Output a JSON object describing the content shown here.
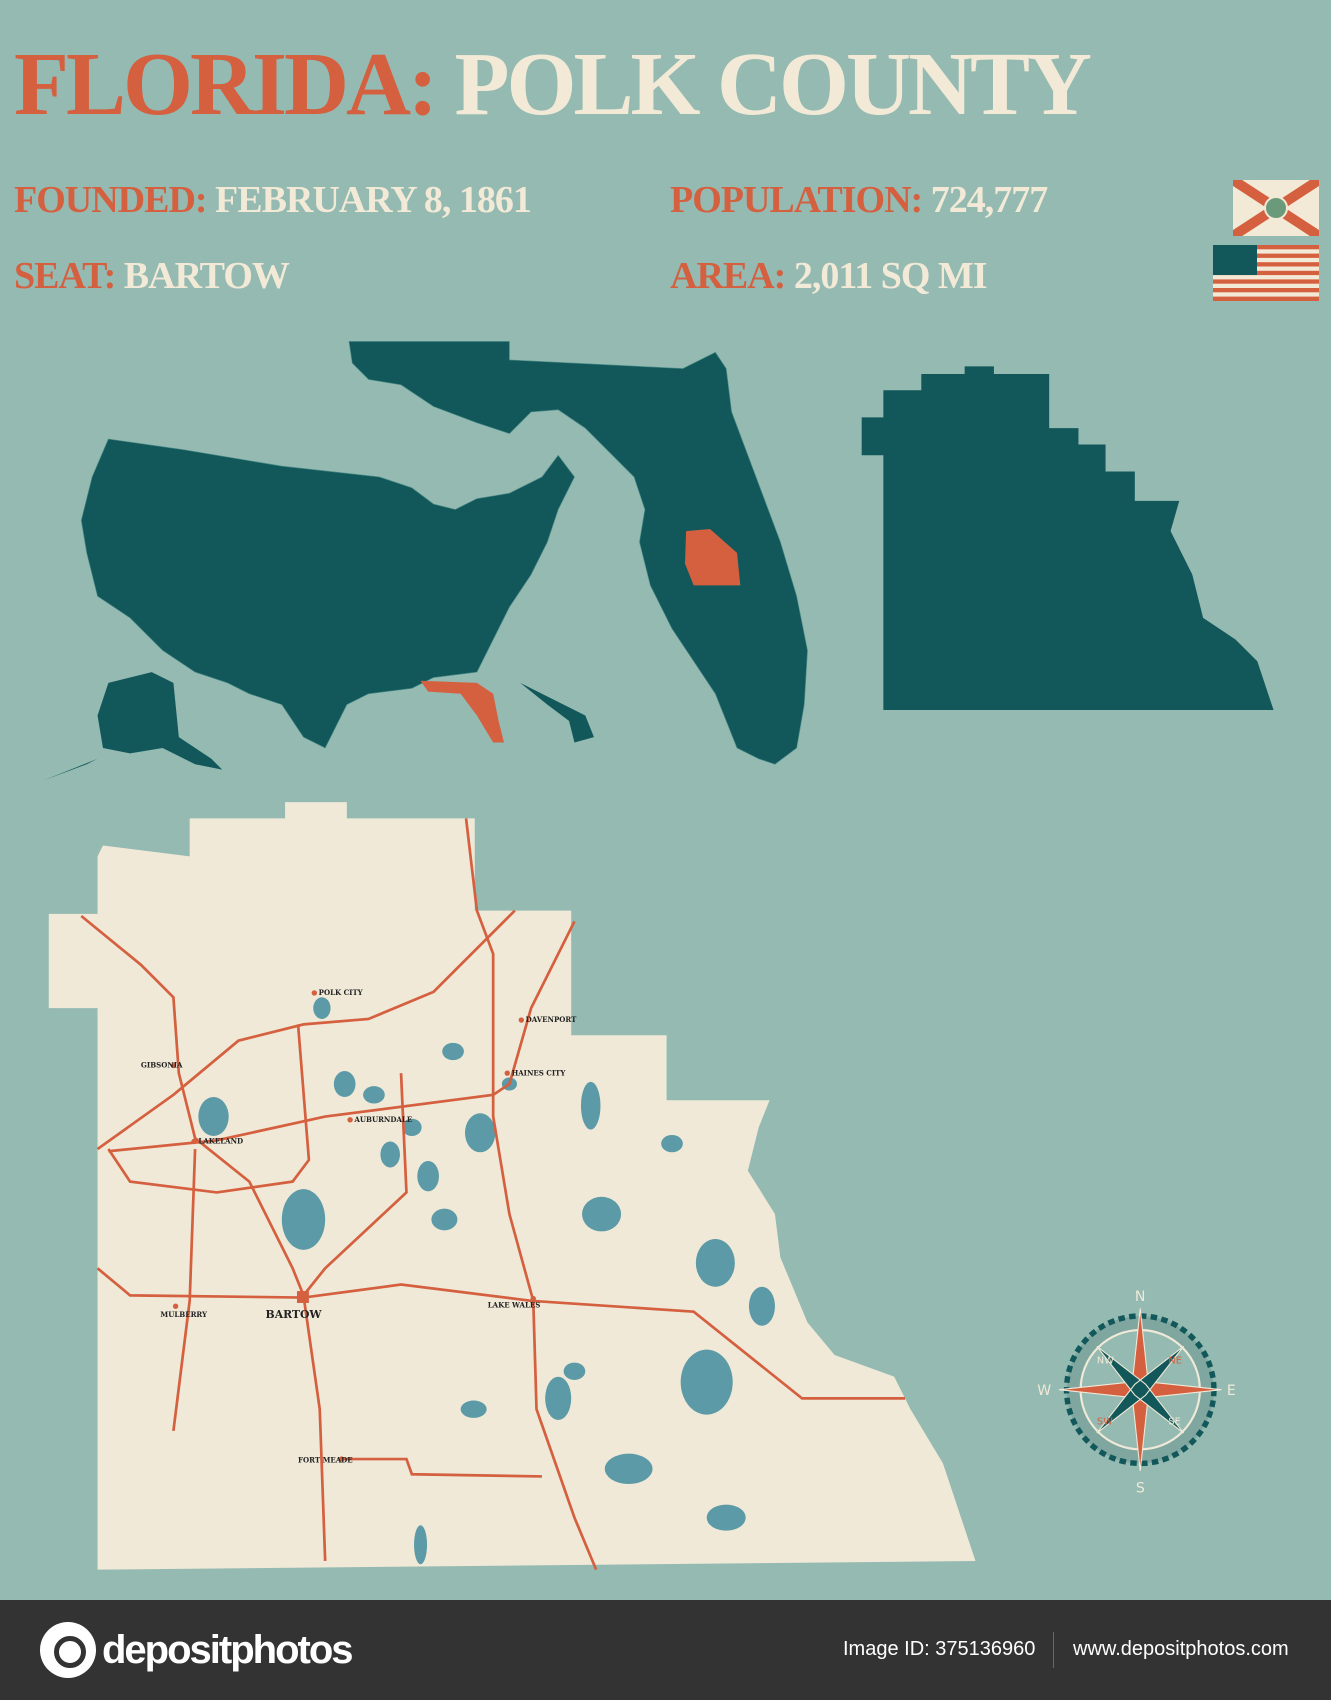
{
  "header": {
    "state": "FLORIDA:",
    "county": "POLK COUNTY",
    "founded_label": "FOUNDED:",
    "founded_value": "FEBRUARY 8, 1861",
    "seat_label": "SEAT:",
    "seat_value": "BARTOW",
    "population_label": "POPULATION:",
    "population_value": "724,777",
    "area_label": "AREA:",
    "area_value": "2,011 SQ MI"
  },
  "flags": [
    "florida-flag",
    "usa-flag"
  ],
  "map": {
    "cities": [
      "POLK CITY",
      "DAVENPORT",
      "GIBSONIA",
      "HAINES CITY",
      "AUBURNDALE",
      "LAKELAND",
      "BARTOW",
      "MULBERRY",
      "LAKE WALES",
      "FORT MEADE"
    ],
    "compass": {
      "n": "N",
      "s": "S",
      "e": "E",
      "w": "W",
      "ne": "NE",
      "nw": "NW",
      "se": "SE",
      "sw": "SW"
    }
  },
  "colors": {
    "background": "#94bab2",
    "dark_teal": "#12585a",
    "orange": "#d5603f",
    "cream": "#f0e9d8",
    "water": "#5b9aa6"
  },
  "footer": {
    "brand": "depositphotos",
    "image_id": "Image ID: 375136960",
    "url": "www.depositphotos.com"
  }
}
